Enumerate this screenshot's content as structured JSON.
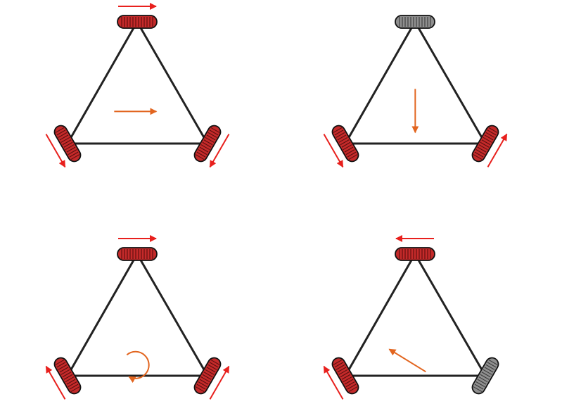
{
  "colors": {
    "frame": "#222222",
    "wheel_active": "#c42a2a",
    "wheel_active_stripe": "#5a0f0f",
    "wheel_idle": "#8f8f8f",
    "wheel_idle_stripe": "#3a3a3a",
    "wheel_direction_arrow": "#e8201d",
    "motion_arrow": "#e2651f",
    "background": "#ffffff"
  },
  "diagrams": [
    {
      "name": "translate-right",
      "motion": "right",
      "wheels": {
        "top": {
          "state": "active",
          "direction": "forward"
        },
        "left": {
          "state": "active",
          "direction": "forward"
        },
        "right": {
          "state": "active",
          "direction": "backward"
        }
      }
    },
    {
      "name": "translate-down",
      "motion": "down",
      "wheels": {
        "top": {
          "state": "idle",
          "direction": "none"
        },
        "left": {
          "state": "active",
          "direction": "forward"
        },
        "right": {
          "state": "active",
          "direction": "forward"
        }
      }
    },
    {
      "name": "rotate-in-place",
      "motion": "rotate-clockwise",
      "wheels": {
        "top": {
          "state": "active",
          "direction": "forward"
        },
        "left": {
          "state": "active",
          "direction": "backward"
        },
        "right": {
          "state": "active",
          "direction": "forward"
        }
      }
    },
    {
      "name": "translate-up-left",
      "motion": "up-left",
      "wheels": {
        "top": {
          "state": "active",
          "direction": "backward"
        },
        "left": {
          "state": "active",
          "direction": "backward"
        },
        "right": {
          "state": "idle",
          "direction": "none"
        }
      }
    }
  ]
}
